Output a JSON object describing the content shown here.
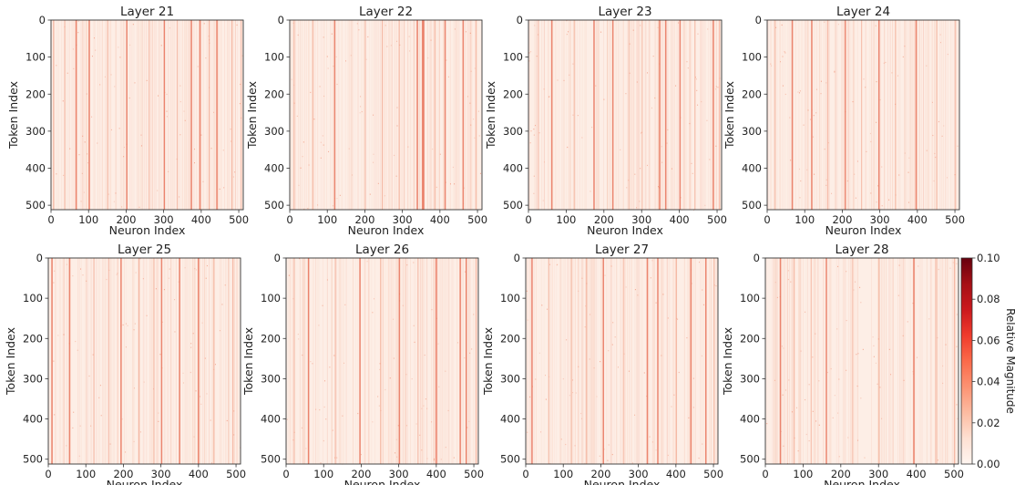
{
  "chart_data": [
    {
      "type": "heatmap",
      "title": "Layer 21",
      "xlabel": "Neuron Index",
      "ylabel": "Token Index",
      "x_ticks": [
        0,
        100,
        200,
        300,
        400,
        500
      ],
      "y_ticks": [
        0,
        100,
        200,
        300,
        400,
        500
      ],
      "xlim": [
        0,
        512
      ],
      "ylim": [
        512,
        0
      ],
      "strong_columns": [
        65,
        100,
        200,
        300,
        372,
        395,
        440
      ],
      "moderate_columns": [
        5,
        35,
        150,
        260,
        335,
        420,
        480,
        505
      ]
    },
    {
      "type": "heatmap",
      "title": "Layer 22",
      "xlabel": "Neuron Index",
      "ylabel": "Token Index",
      "x_ticks": [
        0,
        100,
        200,
        300,
        400,
        500
      ],
      "y_ticks": [
        0,
        100,
        200,
        300,
        400,
        500
      ],
      "xlim": [
        0,
        512
      ],
      "ylim": [
        512,
        0
      ],
      "strong_columns": [
        118,
        338,
        352,
        355,
        412,
        460
      ],
      "moderate_columns": [
        10,
        60,
        200,
        245,
        290,
        385,
        495
      ]
    },
    {
      "type": "heatmap",
      "title": "Layer 23",
      "xlabel": "Neuron Index",
      "ylabel": "Token Index",
      "x_ticks": [
        0,
        100,
        200,
        300,
        400,
        500
      ],
      "y_ticks": [
        0,
        100,
        200,
        300,
        400,
        500
      ],
      "xlim": [
        0,
        512
      ],
      "ylim": [
        512,
        0
      ],
      "strong_columns": [
        60,
        172,
        222,
        346,
        362,
        400,
        488
      ],
      "moderate_columns": [
        25,
        120,
        265,
        300,
        440,
        505
      ]
    },
    {
      "type": "heatmap",
      "title": "Layer 24",
      "xlabel": "Neuron Index",
      "ylabel": "Token Index",
      "x_ticks": [
        0,
        100,
        200,
        300,
        400,
        500
      ],
      "y_ticks": [
        0,
        100,
        200,
        300,
        400,
        500
      ],
      "xlim": [
        0,
        512
      ],
      "ylim": [
        512,
        0
      ],
      "strong_columns": [
        65,
        117,
        206,
        296,
        395
      ],
      "moderate_columns": [
        20,
        160,
        250,
        340,
        450,
        500
      ]
    },
    {
      "type": "heatmap",
      "title": "Layer 25",
      "xlabel": "Neuron Index",
      "ylabel": "Token Index",
      "x_ticks": [
        0,
        100,
        200,
        300,
        400,
        500
      ],
      "y_ticks": [
        0,
        100,
        200,
        300,
        400,
        500
      ],
      "xlim": [
        0,
        512
      ],
      "ylim": [
        512,
        0
      ],
      "strong_columns": [
        8,
        55,
        192,
        300,
        348,
        398
      ],
      "moderate_columns": [
        120,
        160,
        240,
        280,
        440,
        490
      ]
    },
    {
      "type": "heatmap",
      "title": "Layer 26",
      "xlabel": "Neuron Index",
      "ylabel": "Token Index",
      "x_ticks": [
        0,
        100,
        200,
        300,
        400,
        500
      ],
      "y_ticks": [
        0,
        100,
        200,
        300,
        400,
        500
      ],
      "xlim": [
        0,
        512
      ],
      "ylim": [
        512,
        0
      ],
      "strong_columns": [
        58,
        195,
        300,
        398,
        462,
        478
      ],
      "moderate_columns": [
        20,
        130,
        250,
        350,
        505
      ]
    },
    {
      "type": "heatmap",
      "title": "Layer 27",
      "xlabel": "Neuron Index",
      "ylabel": "Token Index",
      "x_ticks": [
        0,
        100,
        200,
        300,
        400,
        500
      ],
      "y_ticks": [
        0,
        100,
        200,
        300,
        400,
        500
      ],
      "xlim": [
        0,
        512
      ],
      "ylim": [
        512,
        0
      ],
      "strong_columns": [
        15,
        205,
        322,
        350,
        438,
        478
      ],
      "moderate_columns": [
        60,
        120,
        160,
        260,
        400,
        500
      ]
    },
    {
      "type": "heatmap",
      "title": "Layer 28",
      "xlabel": "Neuron Index",
      "ylabel": "Token Index",
      "x_ticks": [
        0,
        100,
        200,
        300,
        400,
        500
      ],
      "y_ticks": [
        0,
        100,
        200,
        300,
        400,
        500
      ],
      "xlim": [
        0,
        512
      ],
      "ylim": [
        512,
        0
      ],
      "strong_columns": [
        38,
        160,
        392
      ],
      "moderate_columns": [
        75,
        120,
        230,
        300,
        450,
        500
      ]
    }
  ],
  "colorbar": {
    "label": "Relative Magnitude",
    "min": 0.0,
    "max": 0.1,
    "ticks": [
      "0.00",
      "0.02",
      "0.04",
      "0.06",
      "0.08",
      "0.10"
    ],
    "colormap": [
      "#fff5f0",
      "#fee0d2",
      "#fcbba1",
      "#fc9272",
      "#fb6a4a",
      "#ef3b2c",
      "#cb181d",
      "#a50f15",
      "#67000d"
    ]
  },
  "colors": {
    "background_cell": "#fdeee6",
    "axis": "#333333"
  }
}
